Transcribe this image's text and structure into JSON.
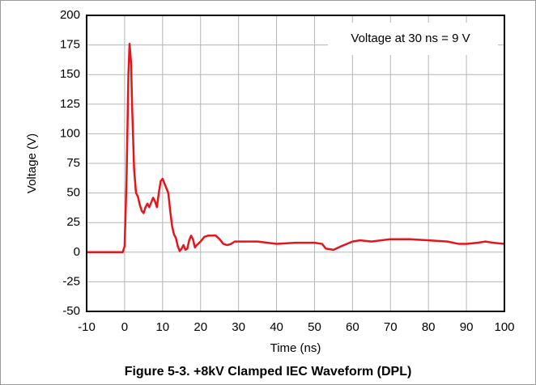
{
  "chart_data": {
    "type": "line",
    "title": "Figure 5-3. +8kV Clamped IEC Waveform (DPL)",
    "xlabel": "Time (ns)",
    "ylabel": "Voltage (V)",
    "annotation": "Voltage at 30 ns = 9 V",
    "x": [
      -10,
      -0.5,
      0,
      0.5,
      1,
      1.3,
      1.7,
      2,
      2.5,
      3,
      3.5,
      4,
      4.5,
      5,
      5.5,
      6,
      6.5,
      7,
      7.5,
      8,
      8.5,
      9,
      9.5,
      10,
      10.5,
      11,
      11.5,
      12,
      12.5,
      13,
      13.5,
      14,
      14.5,
      15,
      15.5,
      16,
      16.5,
      17,
      17.5,
      18,
      18.5,
      19,
      20,
      21,
      22,
      23,
      24,
      25,
      26,
      27,
      28,
      29,
      30,
      35,
      40,
      45,
      50,
      52,
      53,
      55,
      57,
      60,
      62,
      65,
      70,
      75,
      80,
      85,
      88,
      90,
      93,
      95,
      97,
      100
    ],
    "series": [
      {
        "name": "Voltage",
        "color": "#e8141c",
        "values": [
          0,
          0,
          5,
          60,
          150,
          176,
          160,
          120,
          70,
          50,
          47,
          40,
          35,
          33,
          38,
          41,
          38,
          42,
          46,
          43,
          38,
          50,
          60,
          62,
          58,
          54,
          50,
          35,
          22,
          15,
          12,
          5,
          1,
          3,
          6,
          2,
          3,
          10,
          14,
          11,
          4,
          6,
          9,
          13,
          14,
          14,
          14,
          11,
          7,
          6,
          7,
          9,
          9,
          9,
          7,
          8,
          8,
          7,
          3,
          2,
          5,
          9,
          10,
          9,
          11,
          11,
          10,
          9,
          7,
          7,
          8,
          9,
          8,
          7
        ]
      }
    ],
    "xlim": [
      -10,
      100
    ],
    "xticks": [
      -10,
      0,
      10,
      20,
      30,
      40,
      50,
      60,
      70,
      80,
      90,
      100
    ],
    "ylim": [
      -50,
      200
    ],
    "yticks": [
      -50,
      -25,
      0,
      25,
      50,
      75,
      100,
      125,
      150,
      175,
      200
    ],
    "grid": true
  }
}
